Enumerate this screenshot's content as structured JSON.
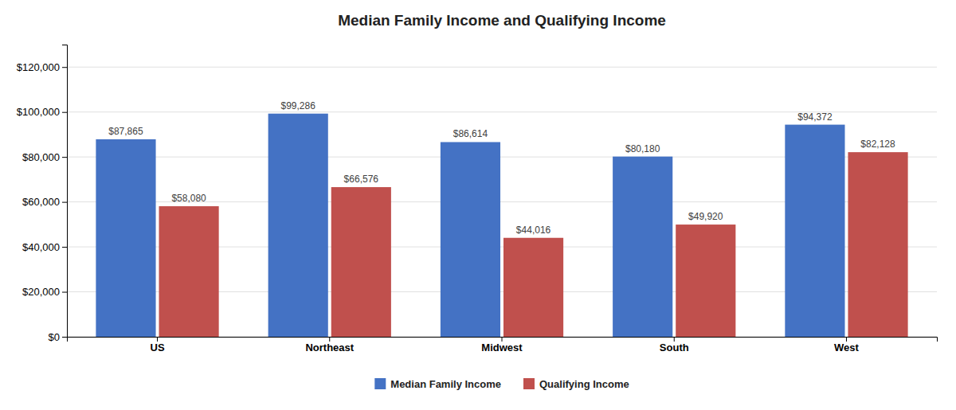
{
  "chart_data": {
    "type": "bar",
    "title": "Median Family Income and Qualifying Income",
    "categories": [
      "US",
      "Northeast",
      "Midwest",
      "South",
      "West"
    ],
    "series": [
      {
        "name": "Median Family Income",
        "color": "#4472C4",
        "values": [
          87865,
          99286,
          86614,
          80180,
          94372
        ],
        "value_labels": [
          "$87,865",
          "$99,286",
          "$86,614",
          "$80,180",
          "$94,372"
        ]
      },
      {
        "name": "Qualifying Income",
        "color": "#C0504D",
        "values": [
          58080,
          66576,
          44016,
          49920,
          82128
        ],
        "value_labels": [
          "$58,080",
          "$66,576",
          "$44,016",
          "$49,920",
          "$82,128"
        ]
      }
    ],
    "ylim": [
      0,
      130000
    ],
    "yticks": [
      {
        "value": 0,
        "label": "$0"
      },
      {
        "value": 20000,
        "label": "$20,000"
      },
      {
        "value": 40000,
        "label": "$40,000"
      },
      {
        "value": 60000,
        "label": "$60,000"
      },
      {
        "value": 80000,
        "label": "$80,000"
      },
      {
        "value": 100000,
        "label": "$100,000"
      },
      {
        "value": 120000,
        "label": "$120,000"
      }
    ],
    "grid": true,
    "legend": "bottom",
    "data_labels": true
  }
}
